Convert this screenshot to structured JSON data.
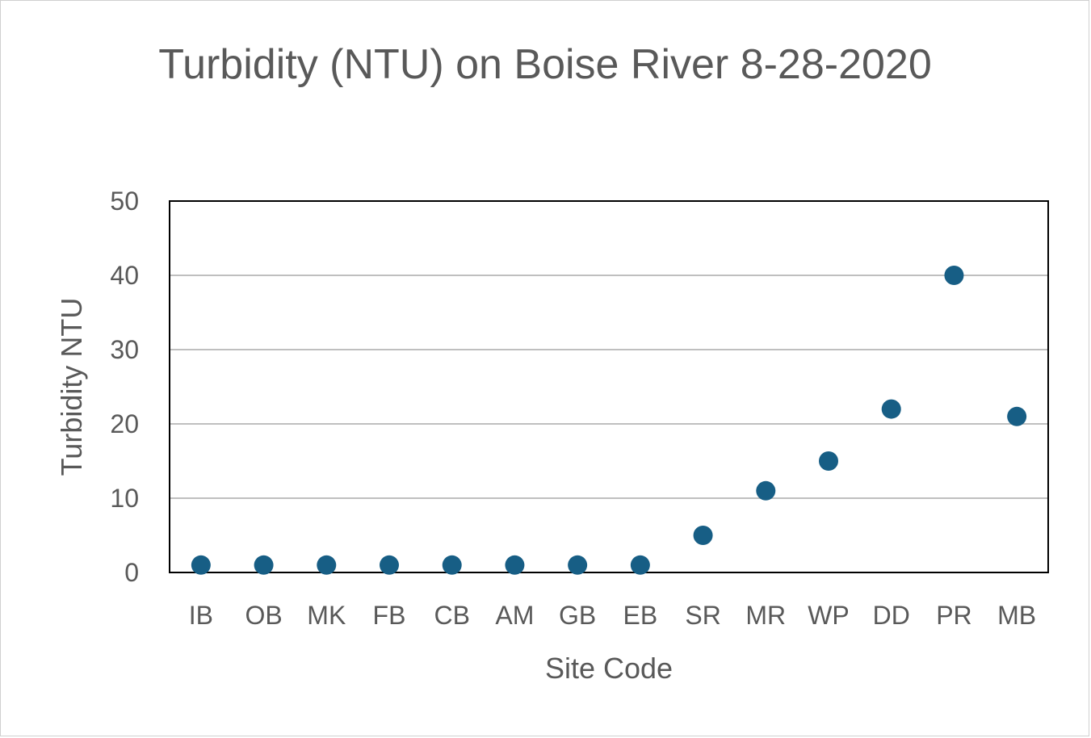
{
  "chart_data": {
    "type": "scatter",
    "title": "Turbidity (NTU) on Boise River 8-28-2020",
    "xlabel": "Site Code",
    "ylabel": "Turbidity NTU",
    "categories": [
      "IB",
      "OB",
      "MK",
      "FB",
      "CB",
      "AM",
      "GB",
      "EB",
      "SR",
      "MR",
      "WP",
      "DD",
      "PR",
      "MB"
    ],
    "series": [
      {
        "values": [
          1,
          1,
          1,
          1,
          1,
          1,
          1,
          1,
          5,
          11,
          15,
          22,
          40,
          21
        ]
      }
    ],
    "ylim": [
      0,
      50
    ],
    "yticks": [
      0,
      10,
      20,
      30,
      40,
      50
    ],
    "grid": true,
    "colors": {
      "marker": "#175e85",
      "grid": "#bfbfbf",
      "text": "#595959",
      "axis": "#000000"
    }
  }
}
